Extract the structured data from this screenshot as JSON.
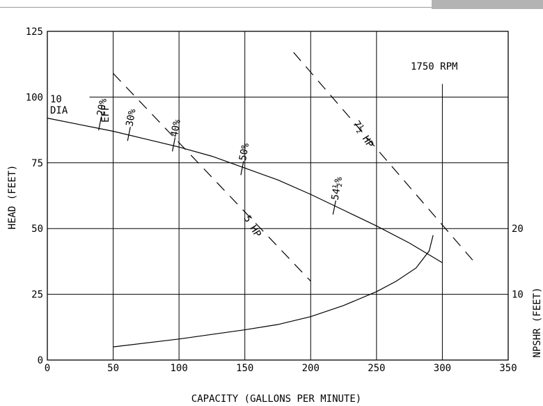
{
  "chart_data": {
    "type": "line",
    "title": "",
    "xlabel": "CAPACITY (GALLONS PER MINUTE)",
    "ylabel": "HEAD (FEET)",
    "y2label": "NPSHR (FEET)",
    "xlim": [
      0,
      350
    ],
    "ylim": [
      0,
      125
    ],
    "y2lim": [
      0,
      50
    ],
    "grid": true,
    "x_ticks": [
      "0",
      "50",
      "100",
      "150",
      "200",
      "250",
      "300",
      "350"
    ],
    "y_ticks": [
      "0",
      "25",
      "50",
      "75",
      "100",
      "125"
    ],
    "y2_ticks": [
      "10",
      "20"
    ],
    "rpm_label": "1750 RPM",
    "impeller_label": {
      "size": "10",
      "dia": "DIA"
    },
    "eff_header": "EFF",
    "series": [
      {
        "name": "head",
        "x": [
          0,
          25,
          50,
          75,
          100,
          125,
          150,
          175,
          200,
          225,
          250,
          275,
          300
        ],
        "y": [
          92,
          89.5,
          87,
          84,
          81,
          77.5,
          73,
          68.5,
          63,
          57,
          51,
          44.5,
          37
        ]
      },
      {
        "name": "npshr",
        "x": [
          50,
          100,
          150,
          175,
          200,
          225,
          250,
          265,
          280,
          290,
          293
        ],
        "y": [
          2,
          3.2,
          4.6,
          5.4,
          6.6,
          8.3,
          10.4,
          12,
          14,
          16.6,
          19
        ]
      },
      {
        "name": "5 HP",
        "x": [
          50,
          200
        ],
        "y": [
          109,
          30
        ]
      },
      {
        "name": "7½ HP",
        "x": [
          187,
          323
        ],
        "y": [
          117,
          38
        ]
      }
    ],
    "efficiency_marks": [
      {
        "label": "20%",
        "x": 40,
        "y": 90
      },
      {
        "label": "30%",
        "x": 62,
        "y": 86
      },
      {
        "label": "40%",
        "x": 96,
        "y": 82
      },
      {
        "label": "50%",
        "x": 148,
        "y": 73
      },
      {
        "label": "54½%",
        "x": 218,
        "y": 58
      }
    ],
    "power_labels": [
      {
        "label": "5 HP",
        "x": 149,
        "y": 54
      },
      {
        "label": "7½ HP",
        "x": 232,
        "y": 90
      }
    ]
  }
}
